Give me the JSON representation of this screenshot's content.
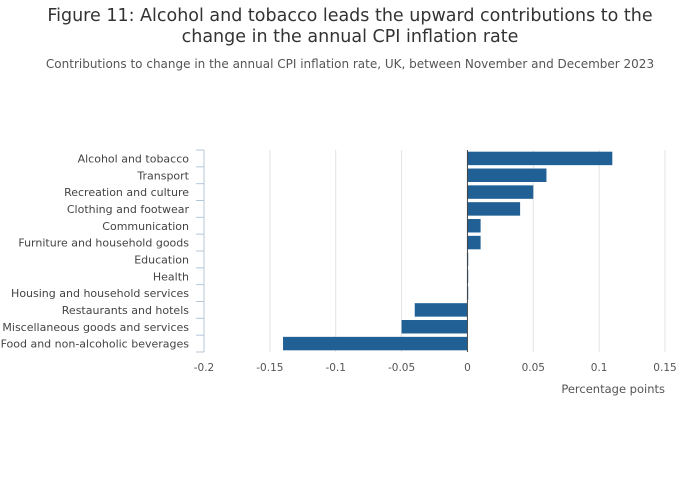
{
  "title": "Figure 11: Alcohol and tobacco leads the upward contributions to the change in the annual CPI inflation rate",
  "subtitle": "Contributions to change in the annual CPI inflation rate, UK, between November and December 2023",
  "colors": {
    "bar": "#206095",
    "grid": "#e3e3e3",
    "zero_line": "#444444",
    "axis_ticks": "#b4c6d8"
  },
  "chart_data": {
    "type": "bar",
    "orientation": "horizontal",
    "categories": [
      "Alcohol and tobacco",
      "Transport",
      "Recreation and culture",
      "Clothing and footwear",
      "Communication",
      "Furniture and household goods",
      "Education",
      "Health",
      "Housing and household services",
      "Restaurants and hotels",
      "Miscellaneous goods and services",
      "Food and non-alcoholic beverages"
    ],
    "values": [
      0.11,
      0.06,
      0.05,
      0.04,
      0.01,
      0.01,
      0.0,
      0.0,
      0.0,
      -0.04,
      -0.05,
      -0.14
    ],
    "xlabel": "Percentage points",
    "ylabel": "",
    "xlim": [
      -0.2,
      0.15
    ],
    "xticks": [
      -0.2,
      -0.15,
      -0.1,
      -0.05,
      0,
      0.05,
      0.1,
      0.15
    ],
    "xtick_labels": [
      "-0.2",
      "-0.15",
      "-0.1",
      "-0.05",
      "0",
      "0.05",
      "0.1",
      "0.15"
    ],
    "grid": true
  }
}
